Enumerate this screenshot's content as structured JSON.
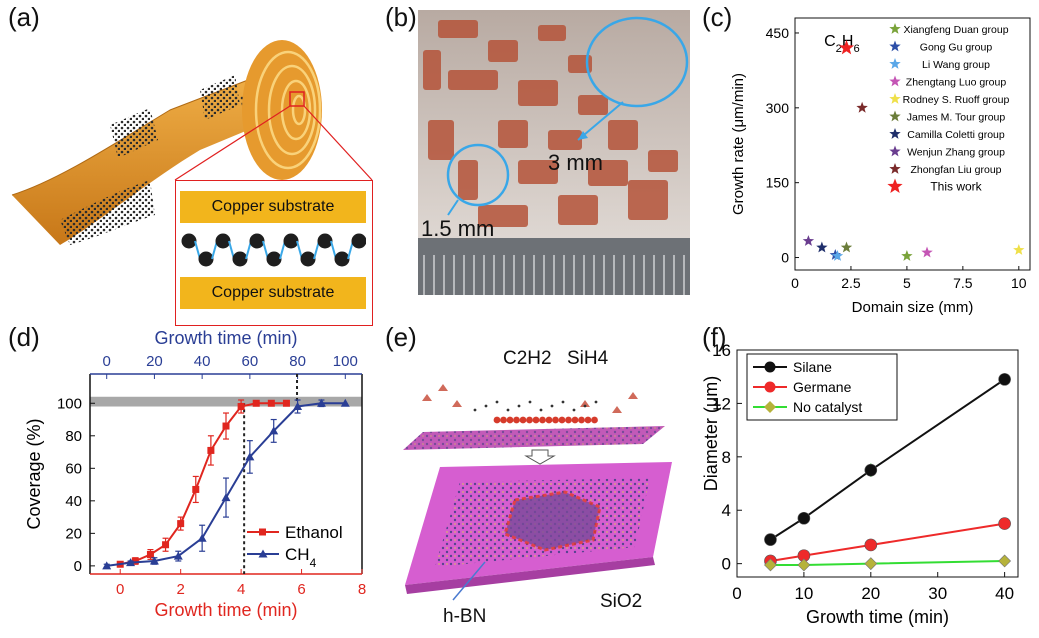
{
  "panel_labels": [
    "(a)",
    "(b)",
    "(c)",
    "(d)",
    "(e)",
    "(f)"
  ],
  "panel_a": {
    "top_layer": "Copper substrate",
    "bottom_layer": "Copper substrate"
  },
  "panel_b": {
    "large_label": "3 mm",
    "small_label": "1.5 mm"
  },
  "panel_e": {
    "gas1": "C2H2",
    "gas2": "SiH4",
    "bn_label": "h-BN",
    "substrate_label": "SiO2"
  },
  "colors": {
    "red": "#e0261f",
    "blue": "#2a3e95",
    "copper": "#e59a2a",
    "pink": "#cc66cc",
    "green": "#22cc22"
  },
  "chart_data": [
    {
      "id": "c",
      "type": "scatter",
      "xlabel": "Domain size (mm)",
      "ylabel": "Growth rate (μm/min)",
      "xlim": [
        0,
        10.5
      ],
      "ylim": [
        -25,
        480
      ],
      "xticks": [
        0,
        2.5,
        5,
        7.5,
        10
      ],
      "xtick_labels": [
        "0",
        "2.5",
        "5",
        "7.5",
        "10"
      ],
      "yticks": [
        0,
        150,
        300,
        450
      ],
      "ytick_labels": [
        "0",
        "150",
        "300",
        "450"
      ],
      "annotation": "C2H6",
      "legend_position": "top-right",
      "series": [
        {
          "name": "Xiangfeng Duan group",
          "color": "#7aa33a",
          "points": [
            [
              5,
              3
            ]
          ]
        },
        {
          "name": "Gong Gu group",
          "color": "#2d4fa8",
          "points": [
            [
              1.8,
              5
            ]
          ]
        },
        {
          "name": "Li Wang group",
          "color": "#5aa7e8",
          "points": [
            [
              1.9,
              3
            ]
          ]
        },
        {
          "name": "Zhengtang Luo group",
          "color": "#c455b5",
          "points": [
            [
              5.9,
              10
            ]
          ]
        },
        {
          "name": "Rodney S. Ruoff group",
          "color": "#efe04a",
          "points": [
            [
              10,
              15
            ]
          ]
        },
        {
          "name": "James M. Tour group",
          "color": "#6b7d3a",
          "points": [
            [
              2.3,
              20
            ]
          ]
        },
        {
          "name": "Camilla Coletti group",
          "color": "#1f2f6b",
          "points": [
            [
              1.2,
              20
            ]
          ]
        },
        {
          "name": "Wenjun Zhang group",
          "color": "#6a3d8f",
          "points": [
            [
              0.6,
              33
            ]
          ]
        },
        {
          "name": "Zhongfan Liu group",
          "color": "#7a2a2a",
          "points": [
            [
              3.0,
              300
            ]
          ]
        },
        {
          "name": "This work",
          "color": "#ee2222",
          "points": [
            [
              2.3,
              420
            ]
          ]
        }
      ]
    },
    {
      "id": "d",
      "type": "line",
      "xlabel": "Growth time (min)",
      "xlabel_top": "Growth time (min)",
      "ylabel": "Coverage (%)",
      "xlim": [
        -1,
        8
      ],
      "xlim_top": [
        -7,
        107
      ],
      "ylim": [
        -5,
        118
      ],
      "xticks": [
        0,
        2,
        4,
        6,
        8
      ],
      "xtick_labels": [
        "0",
        "2",
        "4",
        "6",
        "8"
      ],
      "xticks_top": [
        0,
        20,
        40,
        60,
        80,
        100
      ],
      "xtick_labels_top": [
        "0",
        "20",
        "40",
        "60",
        "80",
        "100"
      ],
      "yticks": [
        0,
        20,
        40,
        60,
        80,
        100
      ],
      "ytick_labels": [
        "0",
        "20",
        "40",
        "60",
        "80",
        "100"
      ],
      "band": [
        98,
        104
      ],
      "vlines": [
        4.1,
        5.85
      ],
      "series": [
        {
          "name": "Ethanol",
          "axis": "bottom",
          "color": "#e0261f",
          "marker": "square",
          "x": [
            0,
            0.5,
            1,
            1.5,
            2,
            2.5,
            3,
            3.5,
            4,
            4.5,
            5,
            5.5
          ],
          "y": [
            1,
            3,
            7,
            13,
            26,
            47,
            71,
            86,
            98,
            100,
            100,
            100
          ],
          "err": [
            1,
            2,
            3,
            4,
            4,
            8,
            9,
            8,
            4,
            1,
            0,
            0
          ]
        },
        {
          "name": "CH4",
          "axis": "top",
          "color": "#2a3e95",
          "marker": "triangle",
          "x": [
            0,
            10,
            20,
            30,
            40,
            50,
            60,
            70,
            80,
            90,
            100
          ],
          "y": [
            0,
            2,
            3,
            6,
            17,
            42,
            67,
            83,
            98,
            100,
            100
          ],
          "err": [
            1,
            1,
            2,
            3,
            8,
            12,
            10,
            7,
            4,
            2,
            0
          ]
        }
      ],
      "legend": [
        {
          "name": "Ethanol"
        },
        {
          "name": "CH4"
        }
      ]
    },
    {
      "id": "f",
      "type": "line",
      "xlabel": "Growth time (min)",
      "ylabel": "Diameter (μm)",
      "xlim": [
        0,
        42
      ],
      "ylim": [
        -1,
        16
      ],
      "xticks": [
        0,
        10,
        20,
        30,
        40
      ],
      "xtick_labels": [
        "0",
        "10",
        "20",
        "30",
        "40"
      ],
      "yticks": [
        0,
        4,
        8,
        12,
        16
      ],
      "ytick_labels": [
        "0",
        "4",
        "8",
        "12",
        "16"
      ],
      "series": [
        {
          "name": "Silane",
          "color": "#111111",
          "marker_color": "#111111",
          "x": [
            5,
            10,
            20,
            40
          ],
          "y": [
            1.8,
            3.4,
            7.0,
            13.8
          ],
          "err": [
            0.2,
            0.3,
            0.5,
            0.4
          ]
        },
        {
          "name": "Germane",
          "color": "#ee2a2a",
          "marker_color": "#ee2a2a",
          "x": [
            5,
            10,
            20,
            40
          ],
          "y": [
            0.2,
            0.6,
            1.4,
            3.0
          ],
          "err": [
            0.1,
            0.1,
            0.1,
            0.1
          ]
        },
        {
          "name": "No catalyst",
          "color": "#33dd33",
          "marker_color": "#b6b23a",
          "x": [
            5,
            10,
            20,
            40
          ],
          "y": [
            -0.1,
            -0.1,
            0.0,
            0.2
          ],
          "err": [
            0,
            0,
            0,
            0
          ]
        }
      ]
    }
  ]
}
